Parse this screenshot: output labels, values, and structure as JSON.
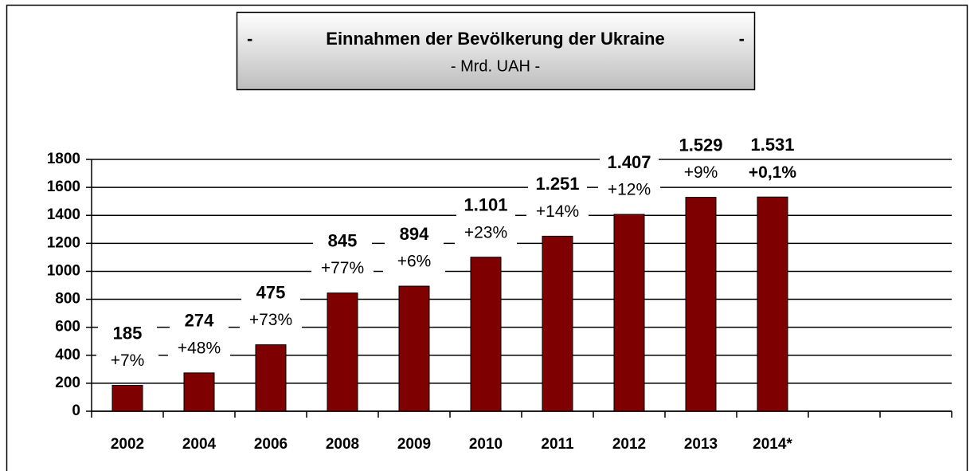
{
  "chart_data": {
    "type": "bar",
    "title": "Einnahmen der Bevölkerung der Ukraine",
    "title_marks": [
      "-",
      "-"
    ],
    "subtitle": "- Mrd. UAH -",
    "categories": [
      "2002",
      "2004",
      "2006",
      "2008",
      "2009",
      "2010",
      "2011",
      "2012",
      "2013",
      "2014*",
      null,
      null
    ],
    "values": [
      185,
      274,
      475,
      845,
      894,
      1101,
      1251,
      1407,
      1529,
      1531,
      null,
      null
    ],
    "value_labels": [
      "185",
      "274",
      "475",
      "845",
      "894",
      "1.101",
      "1.251",
      "1.407",
      "1.529",
      "1.531",
      null,
      null
    ],
    "annotations": [
      {
        "text": "+7%",
        "bold": false
      },
      {
        "text": "+48%",
        "bold": false
      },
      {
        "text": "+73%",
        "bold": false
      },
      {
        "text": "+77%",
        "bold": false
      },
      {
        "text": "+6%",
        "bold": false
      },
      {
        "text": "+23%",
        "bold": false
      },
      {
        "text": "+14%",
        "bold": false
      },
      {
        "text": "+12%",
        "bold": false
      },
      {
        "text": "+9%",
        "bold": false
      },
      {
        "text": "+0,1%",
        "bold": true
      }
    ],
    "color": "#7f0000",
    "ylim": [
      0,
      1800
    ],
    "yticks": [
      0,
      200,
      400,
      600,
      800,
      1000,
      1200,
      1400,
      1600,
      1800
    ],
    "grid": true
  }
}
